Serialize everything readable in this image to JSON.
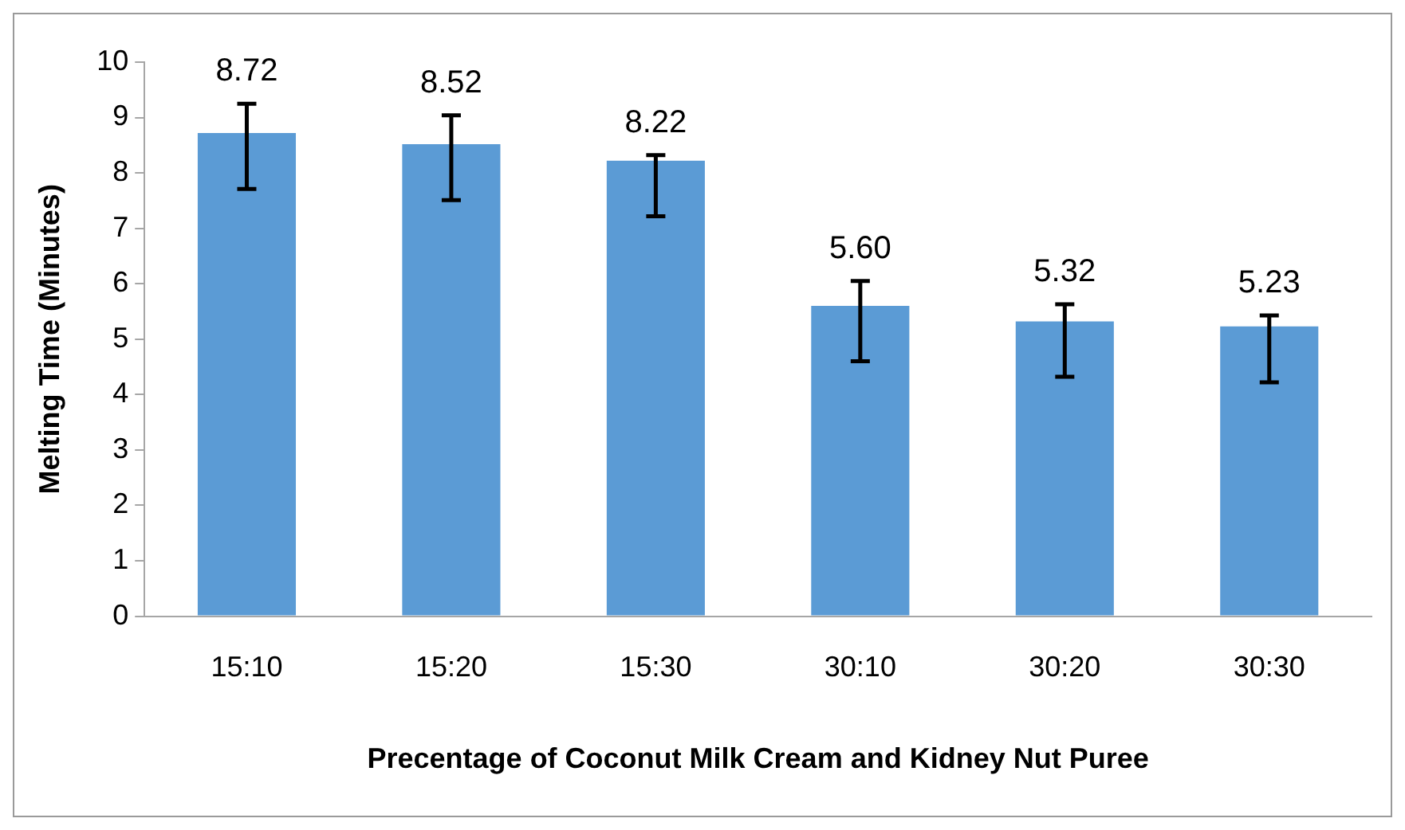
{
  "chart_data": {
    "type": "bar",
    "categories": [
      "15:10",
      "15:20",
      "15:30",
      "30:10",
      "30:20",
      "30:30"
    ],
    "values": [
      8.72,
      8.52,
      8.22,
      5.6,
      5.32,
      5.23
    ],
    "errors": [
      [
        7.71,
        9.25
      ],
      [
        7.51,
        9.04
      ],
      [
        7.22,
        8.32
      ],
      [
        4.6,
        6.05
      ],
      [
        4.32,
        5.63
      ],
      [
        4.22,
        5.43
      ]
    ],
    "value_labels": [
      "8.72",
      "8.52",
      "8.22",
      "5.60",
      "5.32",
      "5.23"
    ],
    "color": "#5b9bd5",
    "xlabel": "Precentage of Coconut Milk Cream and Kidney Nut Puree",
    "ylabel": "Melting Time (Minutes)",
    "ylim": [
      0,
      10
    ],
    "yticks": [
      0,
      1,
      2,
      3,
      4,
      5,
      6,
      7,
      8,
      9,
      10
    ],
    "grid": false,
    "legend": false
  }
}
